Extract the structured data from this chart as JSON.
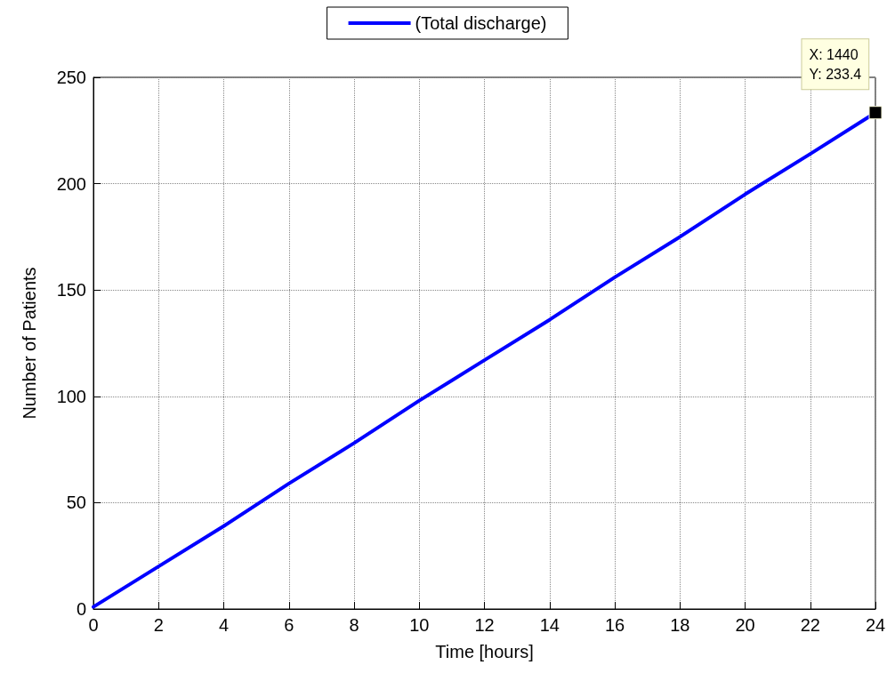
{
  "chart_data": {
    "type": "line",
    "xlabel": "Time [hours]",
    "ylabel": "Number of Patients",
    "x": [
      0,
      2,
      4,
      6,
      8,
      10,
      12,
      14,
      16,
      18,
      20,
      22,
      24
    ],
    "series": [
      {
        "name": "(Total discharge)",
        "color": "#0000ff",
        "values": [
          1,
          20,
          39,
          59,
          78,
          98,
          117,
          136,
          156,
          175,
          195,
          214,
          233.4
        ]
      }
    ],
    "annotations": [
      {
        "text": "X: 1440\nY: 233.4",
        "x": 24,
        "y": 233.4
      }
    ],
    "xlim": [
      0,
      24
    ],
    "xticks": [
      0,
      2,
      4,
      6,
      8,
      10,
      12,
      14,
      16,
      18,
      20,
      22,
      24
    ],
    "ylim": [
      0,
      250
    ],
    "yticks": [
      0,
      50,
      100,
      150,
      200,
      250
    ],
    "grid": true,
    "legend": "top",
    "marker": "none",
    "line_style": "solid"
  }
}
